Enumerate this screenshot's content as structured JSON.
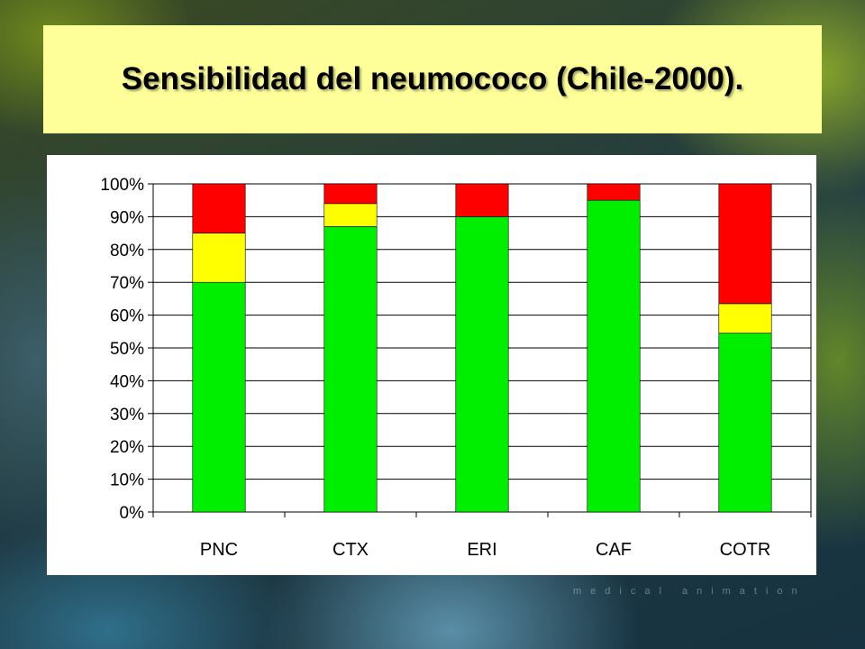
{
  "title": "Sensibilidad del neumococo (Chile-2000).",
  "watermark": "medical animation",
  "colors": {
    "green": "#00ee00",
    "yellow": "#ffff00",
    "red": "#ff0000",
    "title_bg": "#ffff99"
  },
  "chart_data": {
    "type": "bar",
    "stacked": true,
    "categories": [
      "PNC",
      "CTX",
      "ERI",
      "CAF",
      "COTR"
    ],
    "series": [
      {
        "color": "#00ee00",
        "values": [
          70,
          87,
          90,
          95,
          54.5
        ]
      },
      {
        "color": "#ffff00",
        "values": [
          15,
          7,
          0,
          0,
          9
        ]
      },
      {
        "color": "#ff0000",
        "values": [
          15,
          6,
          10,
          5,
          36.5
        ]
      }
    ],
    "ylim": [
      0,
      100
    ],
    "yticks": [
      "0%",
      "10%",
      "20%",
      "30%",
      "40%",
      "50%",
      "60%",
      "70%",
      "80%",
      "90%",
      "100%"
    ],
    "grid": true,
    "title": "",
    "xlabel": "",
    "ylabel": ""
  }
}
